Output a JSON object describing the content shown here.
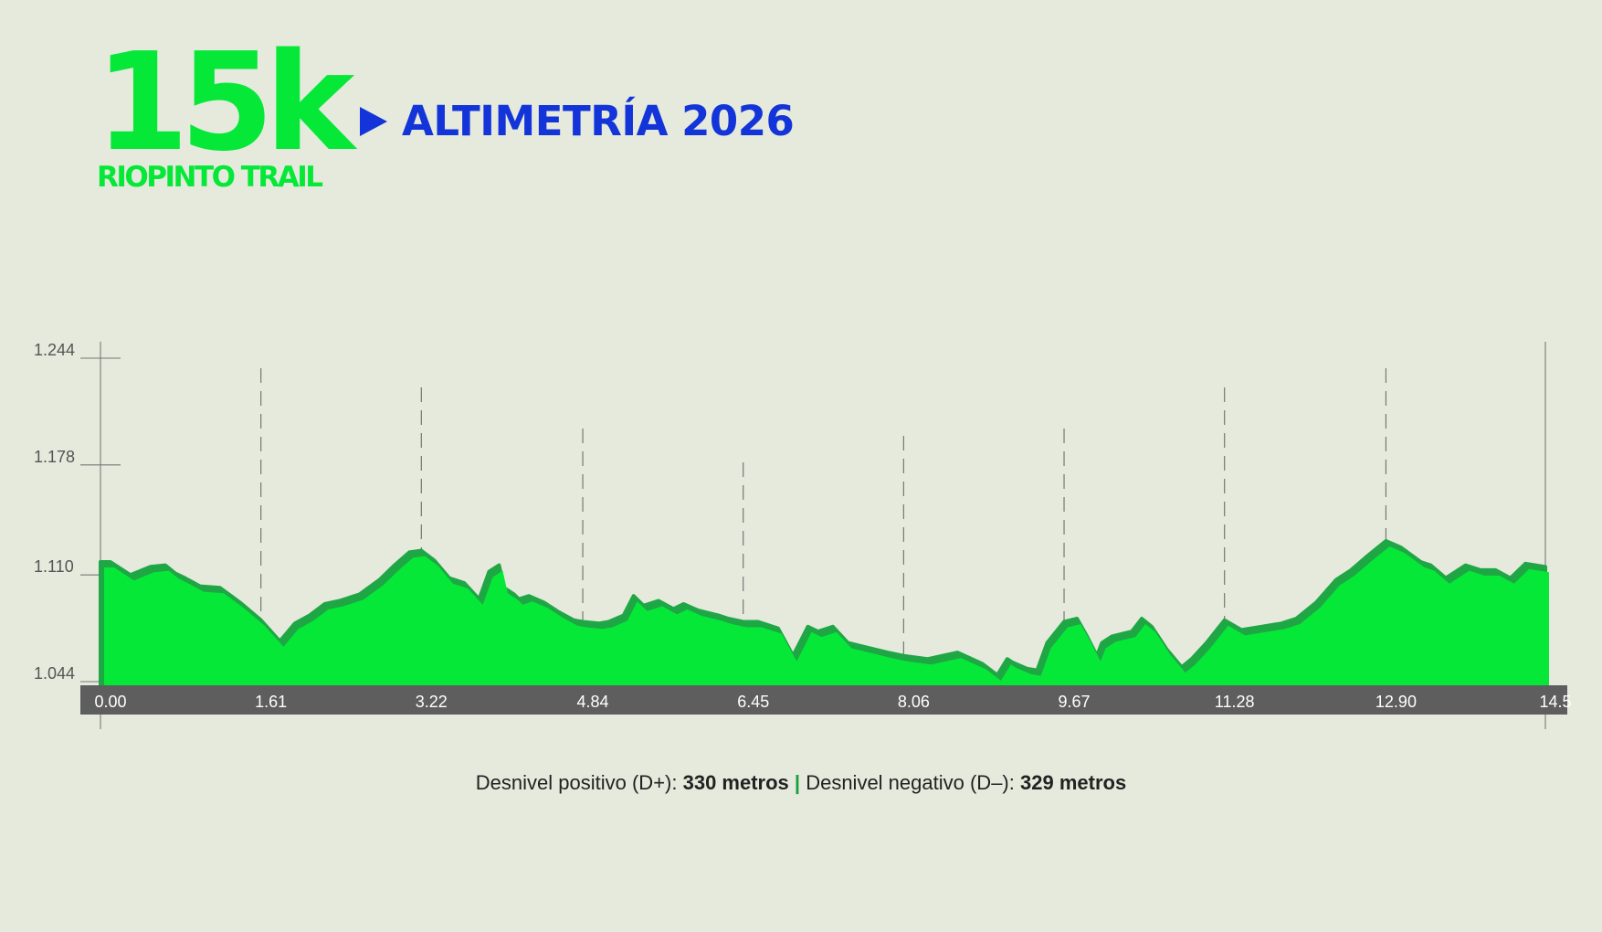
{
  "logo": {
    "big": "15k",
    "sub": "RIOPINTO TRAIL"
  },
  "title": "ALTIMETRÍA 2026",
  "colors": {
    "background": "#e5eadc",
    "brand_green": "#05e838",
    "shadow_green": "#1fa645",
    "title_blue": "#1334d9",
    "axis_bar": "#5e5e5e"
  },
  "icons": {
    "title_marker": "play-triangle-icon"
  },
  "chart_data": {
    "type": "area",
    "title": "",
    "xlabel": "",
    "ylabel": "",
    "xlim": [
      0,
      14.5
    ],
    "ylim": [
      1.044,
      1.244
    ],
    "y_ticks": [
      "1.244",
      "1.178",
      "1.110",
      "1.044"
    ],
    "y_tick_values": [
      1.244,
      1.178,
      1.11,
      1.044
    ],
    "x_ticks": [
      "0.00",
      "1.61",
      "3.22",
      "4.84",
      "6.45",
      "8.06",
      "9.67",
      "11.28",
      "12.90",
      "14.5"
    ],
    "x_tick_values": [
      0,
      1.61,
      3.22,
      4.84,
      6.45,
      8.06,
      9.67,
      11.28,
      12.9,
      14.5
    ],
    "grid": "vertical dashed at each x tick",
    "series": [
      {
        "x": [
          0,
          0.1,
          0.3,
          0.5,
          0.65,
          0.75,
          0.85,
          1.0,
          1.2,
          1.4,
          1.61,
          1.8,
          1.95,
          2.1,
          2.25,
          2.4,
          2.6,
          2.8,
          2.95,
          3.1,
          3.22,
          3.35,
          3.5,
          3.65,
          3.8,
          3.9,
          4.0,
          4.05,
          4.15,
          4.2,
          4.3,
          4.45,
          4.6,
          4.75,
          4.84,
          5.0,
          5.1,
          5.25,
          5.35,
          5.45,
          5.6,
          5.75,
          5.85,
          6.0,
          6.2,
          6.3,
          6.45,
          6.6,
          6.8,
          6.95,
          7.1,
          7.2,
          7.35,
          7.5,
          7.7,
          7.9,
          8.06,
          8.3,
          8.6,
          8.85,
          9.0,
          9.1,
          9.15,
          9.3,
          9.4,
          9.5,
          9.67,
          9.8,
          9.9,
          10.0,
          10.05,
          10.15,
          10.35,
          10.45,
          10.55,
          10.7,
          10.85,
          10.95,
          11.1,
          11.28,
          11.45,
          11.65,
          11.85,
          12.0,
          12.2,
          12.4,
          12.55,
          12.7,
          12.9,
          13.05,
          13.25,
          13.35,
          13.5,
          13.7,
          13.85,
          14.0,
          14.15,
          14.3,
          14.5
        ],
        "values": [
          1.118,
          1.118,
          1.11,
          1.115,
          1.116,
          1.111,
          1.108,
          1.103,
          1.102,
          1.093,
          1.082,
          1.069,
          1.08,
          1.085,
          1.092,
          1.094,
          1.098,
          1.107,
          1.116,
          1.124,
          1.125,
          1.119,
          1.108,
          1.105,
          1.095,
          1.112,
          1.116,
          1.102,
          1.098,
          1.095,
          1.097,
          1.093,
          1.087,
          1.082,
          1.081,
          1.08,
          1.081,
          1.085,
          1.097,
          1.091,
          1.094,
          1.089,
          1.092,
          1.088,
          1.085,
          1.083,
          1.081,
          1.081,
          1.077,
          1.06,
          1.078,
          1.075,
          1.078,
          1.068,
          1.065,
          1.062,
          1.06,
          1.058,
          1.062,
          1.055,
          1.048,
          1.058,
          1.056,
          1.052,
          1.051,
          1.068,
          1.081,
          1.083,
          1.072,
          1.06,
          1.068,
          1.072,
          1.075,
          1.083,
          1.078,
          1.064,
          1.053,
          1.058,
          1.068,
          1.082,
          1.076,
          1.078,
          1.08,
          1.083,
          1.093,
          1.107,
          1.113,
          1.121,
          1.131,
          1.127,
          1.118,
          1.116,
          1.108,
          1.116,
          1.113,
          1.113,
          1.108,
          1.117,
          1.115
        ]
      }
    ]
  },
  "footer": {
    "dplus_label": "Desnivel positivo (D+):",
    "dplus_value": "330 metros",
    "separator": "|",
    "dminus_label": "Desnivel negativo (D–):",
    "dminus_value": "329 metros"
  }
}
